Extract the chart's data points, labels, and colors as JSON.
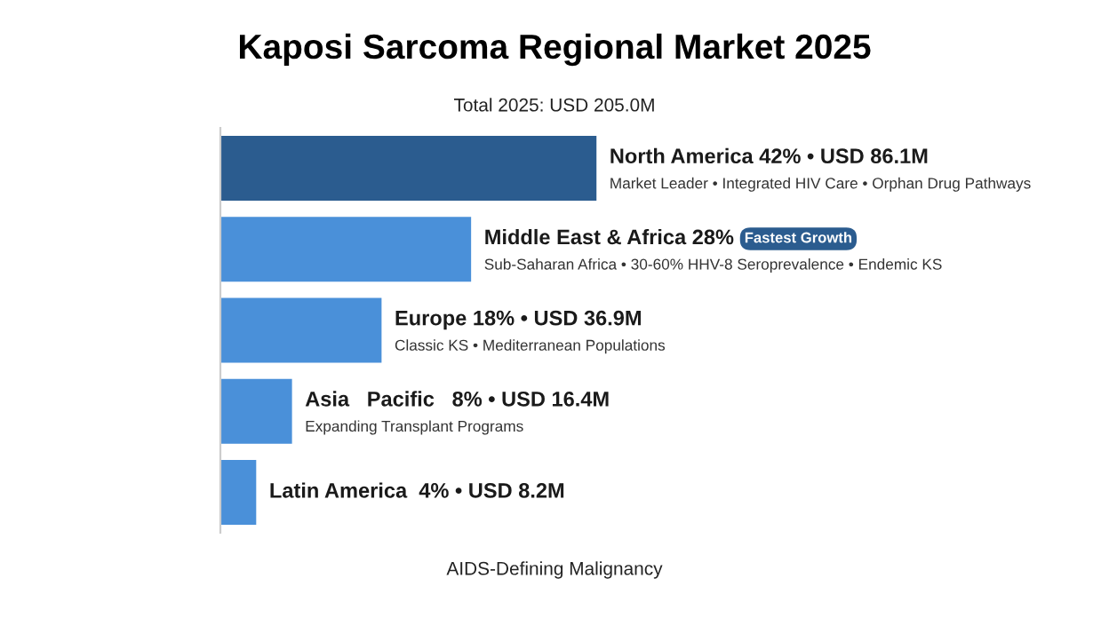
{
  "chart_data": {
    "type": "bar",
    "orientation": "horizontal",
    "title": "Kaposi Sarcoma Regional Market 2025",
    "subtitle": "Total 2025: USD 205.0M",
    "categories": [
      null,
      null,
      null,
      null,
      null
    ],
    "values": [
      42,
      28,
      18,
      8,
      4
    ],
    "colors": [
      "#2b5c8f",
      "#4a90d9",
      "#4a90d9",
      "#4a90d9",
      "#4a90d9"
    ],
    "value_labels": [
      "North America 42% • USD 86.1M",
      "Middle East & Africa 28%",
      "Europe 18% • USD 36.9M",
      "Asia   Pacific   8% • USD 16.4M",
      "Latin America  4% • USD 8.2M"
    ],
    "annotations": [
      "Market Leader • Integrated HIV Care • Orphan Drug Pathways",
      "Sub-Saharan Africa • 30-60% HHV-8 Seroprevalence • Endemic KS",
      "Classic KS • Mediterranean Populations",
      "Expanding Transplant Programs",
      "Fastest Growth",
      "AIDS-Defining Malignancy"
    ]
  }
}
